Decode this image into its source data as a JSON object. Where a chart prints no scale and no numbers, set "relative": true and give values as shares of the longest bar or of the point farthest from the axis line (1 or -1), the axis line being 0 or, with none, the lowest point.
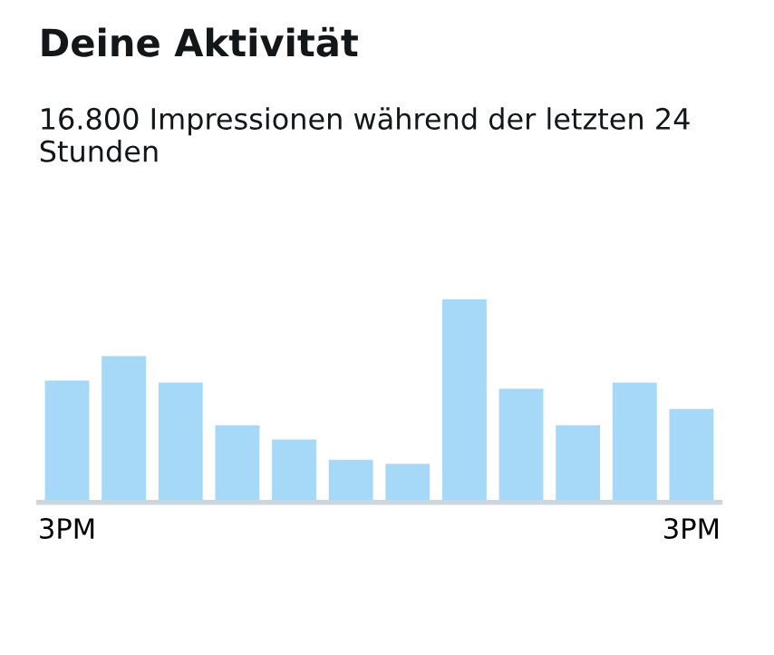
{
  "chart_data": {
    "type": "bar",
    "title": "Deine Aktivität",
    "subtitle": "16.800 Impressionen während der letzten 24 Stunden",
    "categories": [
      "3PM",
      null,
      null,
      null,
      null,
      null,
      null,
      null,
      null,
      null,
      null,
      "3PM"
    ],
    "values": [
      0.6,
      0.72,
      0.59,
      0.38,
      0.31,
      0.21,
      0.19,
      1,
      0.56,
      0.38,
      0.59,
      0.46
    ],
    "color": "#a6d8f7",
    "relative": true,
    "grid": false,
    "legend": false
  }
}
